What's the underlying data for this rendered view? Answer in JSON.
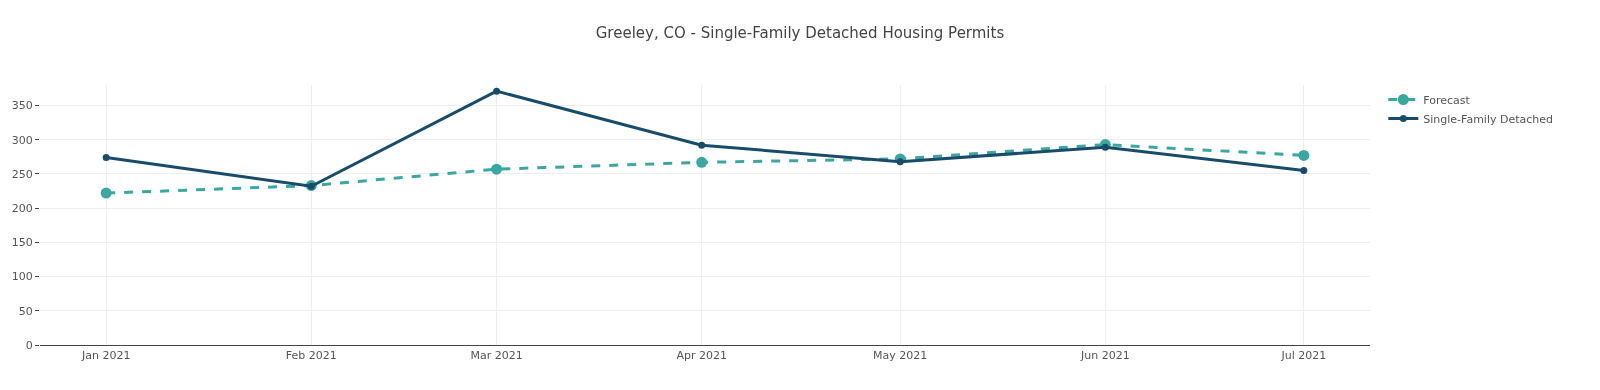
{
  "chart_data": {
    "type": "line",
    "title": "Greeley, CO - Single-Family Detached Housing Permits",
    "x": [
      "2021-01",
      "2021-02",
      "2021-03",
      "2021-04",
      "2021-05",
      "2021-06",
      "2021-07"
    ],
    "series": [
      {
        "name": "Forecast",
        "color": "#3aa8a0",
        "line_style": "dashed",
        "values": [
          222,
          233,
          257,
          267,
          272,
          293,
          277
        ]
      },
      {
        "name": "Single-Family Detached",
        "color": "#174d6b",
        "line_style": "solid",
        "values": [
          274,
          232,
          371,
          292,
          268,
          289,
          255
        ]
      }
    ],
    "xlim": [
      "2020-12-22",
      "2021-07-11"
    ],
    "xticks": [
      {
        "value": "2021-01",
        "label": "Jan 2021"
      },
      {
        "value": "2021-02",
        "label": "Feb 2021"
      },
      {
        "value": "2021-03",
        "label": "Mar 2021"
      },
      {
        "value": "2021-04",
        "label": "Apr 2021"
      },
      {
        "value": "2021-05",
        "label": "May 2021"
      },
      {
        "value": "2021-06",
        "label": "Jun 2021"
      },
      {
        "value": "2021-07",
        "label": "Jul 2021"
      }
    ],
    "ylim": [
      0,
      380
    ],
    "yticks": [
      0,
      50,
      100,
      150,
      200,
      250,
      300,
      350
    ],
    "grid": true,
    "legend": "top right",
    "marker": "circle"
  }
}
